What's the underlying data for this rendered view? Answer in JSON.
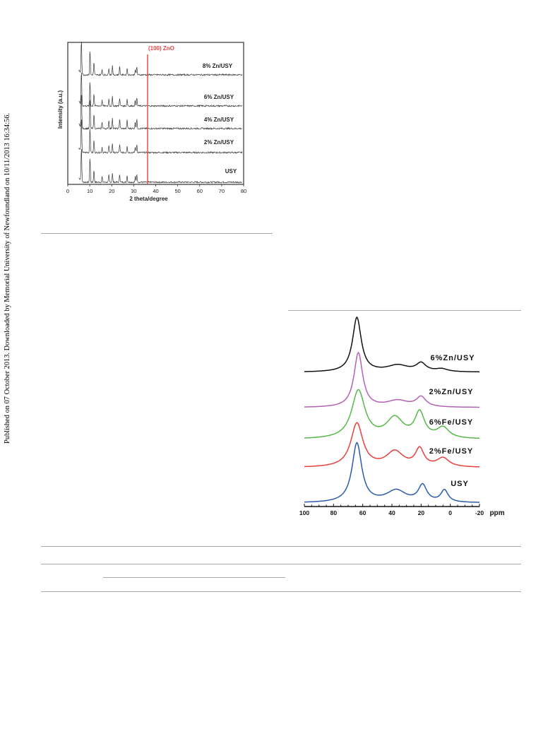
{
  "side_note": "Published on 07 October 2013. Downloaded by Memorial University of Newfoundland on 10/11/2013 16:34:56.",
  "xrd_figure": {
    "chart_data": {
      "type": "line",
      "xlabel": "2 theta/degree",
      "ylabel": "Intensity (a.u.)",
      "xlim": [
        0,
        80
      ],
      "x_ticks": [
        "0",
        "10",
        "20",
        "30",
        "40",
        "50",
        "60",
        "70",
        "80"
      ],
      "marker": {
        "label": "(100) ZnO",
        "x": 36.3,
        "color": "#e8463f"
      },
      "series": [
        {
          "name": "USY",
          "peaks": [
            6.2,
            10.1,
            11.9,
            15.6,
            18.7,
            20.3,
            23.6,
            27.0,
            30.7,
            31.4
          ]
        },
        {
          "name": "2% Zn/USY",
          "peaks": [
            6.2,
            10.1,
            11.9,
            15.6,
            18.7,
            20.3,
            23.6,
            27.0,
            30.7,
            31.4
          ]
        },
        {
          "name": "4% Zn/USY",
          "peaks": [
            6.2,
            10.1,
            11.9,
            15.6,
            18.7,
            20.3,
            23.6,
            27.0,
            30.7,
            31.4
          ]
        },
        {
          "name": "6% Zn/USY",
          "peaks": [
            6.2,
            10.1,
            11.9,
            15.6,
            18.7,
            20.3,
            23.6,
            27.0,
            30.7,
            31.4
          ]
        },
        {
          "name": "8% Zn/USY",
          "peaks": [
            6.2,
            10.1,
            11.9,
            15.6,
            18.7,
            20.3,
            23.6,
            27.0,
            30.7,
            31.4
          ]
        }
      ]
    }
  },
  "nmr_figure": {
    "chart_data": {
      "type": "line",
      "xlabel": "ppm",
      "xlim": [
        100,
        -20
      ],
      "x_ticks": [
        "100",
        "80",
        "60",
        "40",
        "20",
        "0",
        "-20"
      ],
      "series": [
        {
          "name": "USY",
          "color": "#2a5caa",
          "peaks": [
            {
              "ppm": 64,
              "h": 1.0,
              "w": 4.0
            },
            {
              "ppm": 37,
              "h": 0.2,
              "w": 8
            },
            {
              "ppm": 19,
              "h": 0.28,
              "w": 3.5
            },
            {
              "ppm": 4,
              "h": 0.2,
              "w": 3
            }
          ]
        },
        {
          "name": "2%Fe/USY",
          "color": "#e8403a",
          "peaks": [
            {
              "ppm": 64,
              "h": 1.0,
              "w": 5.0
            },
            {
              "ppm": 38,
              "h": 0.35,
              "w": 7
            },
            {
              "ppm": 21,
              "h": 0.4,
              "w": 3.5
            },
            {
              "ppm": 5,
              "h": 0.2,
              "w": 5
            }
          ]
        },
        {
          "name": "6%Fe/USY",
          "color": "#55b848",
          "peaks": [
            {
              "ppm": 63,
              "h": 1.0,
              "w": 5.5
            },
            {
              "ppm": 38,
              "h": 0.42,
              "w": 7
            },
            {
              "ppm": 21,
              "h": 0.52,
              "w": 4
            },
            {
              "ppm": 5,
              "h": 0.22,
              "w": 5
            }
          ]
        },
        {
          "name": "2%Zn/USY",
          "color": "#b460b4",
          "peaks": [
            {
              "ppm": 63,
              "h": 1.0,
              "w": 3.6
            },
            {
              "ppm": 36,
              "h": 0.12,
              "w": 9
            },
            {
              "ppm": 20,
              "h": 0.18,
              "w": 4
            }
          ]
        },
        {
          "name": "6%Zn/USY",
          "color": "#111111",
          "peaks": [
            {
              "ppm": 64,
              "h": 1.0,
              "w": 3.6
            },
            {
              "ppm": 36,
              "h": 0.12,
              "w": 9
            },
            {
              "ppm": 20,
              "h": 0.15,
              "w": 4
            },
            {
              "ppm": 6,
              "h": 0.05,
              "w": 5
            }
          ]
        }
      ]
    }
  }
}
